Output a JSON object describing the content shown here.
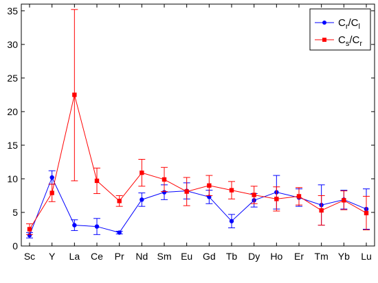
{
  "chart_data": {
    "type": "line",
    "categories": [
      "Sc",
      "Y",
      "La",
      "Ce",
      "Pr",
      "Nd",
      "Sm",
      "Eu",
      "Gd",
      "Tb",
      "Dy",
      "Ho",
      "Er",
      "Tm",
      "Yb",
      "Lu"
    ],
    "ylim": [
      0,
      36
    ],
    "yticks": [
      0,
      5,
      10,
      15,
      20,
      25,
      30,
      35
    ],
    "grid": false,
    "legend_position": "top-right",
    "series": [
      {
        "name_main": "C",
        "name_sub1": "r",
        "name_slash": "/C",
        "name_sub2": "l",
        "color": "#0000ff",
        "marker": "circle",
        "values": [
          1.6,
          10.2,
          3.1,
          2.9,
          2.0,
          6.9,
          8.0,
          8.2,
          7.3,
          3.7,
          6.8,
          8.0,
          7.2,
          6.1,
          6.9,
          5.5
        ],
        "err_low": [
          0.4,
          1.0,
          0.8,
          1.2,
          0.2,
          1.0,
          1.1,
          1.2,
          1.0,
          1.0,
          1.0,
          2.5,
          1.3,
          3.0,
          1.4,
          3.0
        ],
        "err_high": [
          0.4,
          1.0,
          0.8,
          1.2,
          0.2,
          1.0,
          1.1,
          1.2,
          1.0,
          1.0,
          1.0,
          2.5,
          1.3,
          3.0,
          1.4,
          3.0
        ]
      },
      {
        "name_main": "C",
        "name_sub1": "s",
        "name_slash": "/C",
        "name_sub2": "r",
        "color": "#ff0000",
        "marker": "square",
        "values": [
          2.5,
          7.9,
          22.5,
          9.7,
          6.7,
          10.9,
          9.9,
          8.1,
          9.0,
          8.3,
          7.6,
          7.0,
          7.4,
          5.3,
          6.8,
          4.9
        ],
        "err_low": [
          0.8,
          1.3,
          12.8,
          1.9,
          0.8,
          2.0,
          1.8,
          2.1,
          1.5,
          1.3,
          1.3,
          1.8,
          1.3,
          2.2,
          1.4,
          2.5
        ],
        "err_high": [
          0.8,
          1.3,
          12.7,
          1.9,
          0.8,
          2.0,
          1.8,
          2.1,
          1.5,
          1.3,
          1.3,
          1.8,
          1.3,
          2.2,
          1.4,
          2.5
        ]
      }
    ]
  }
}
